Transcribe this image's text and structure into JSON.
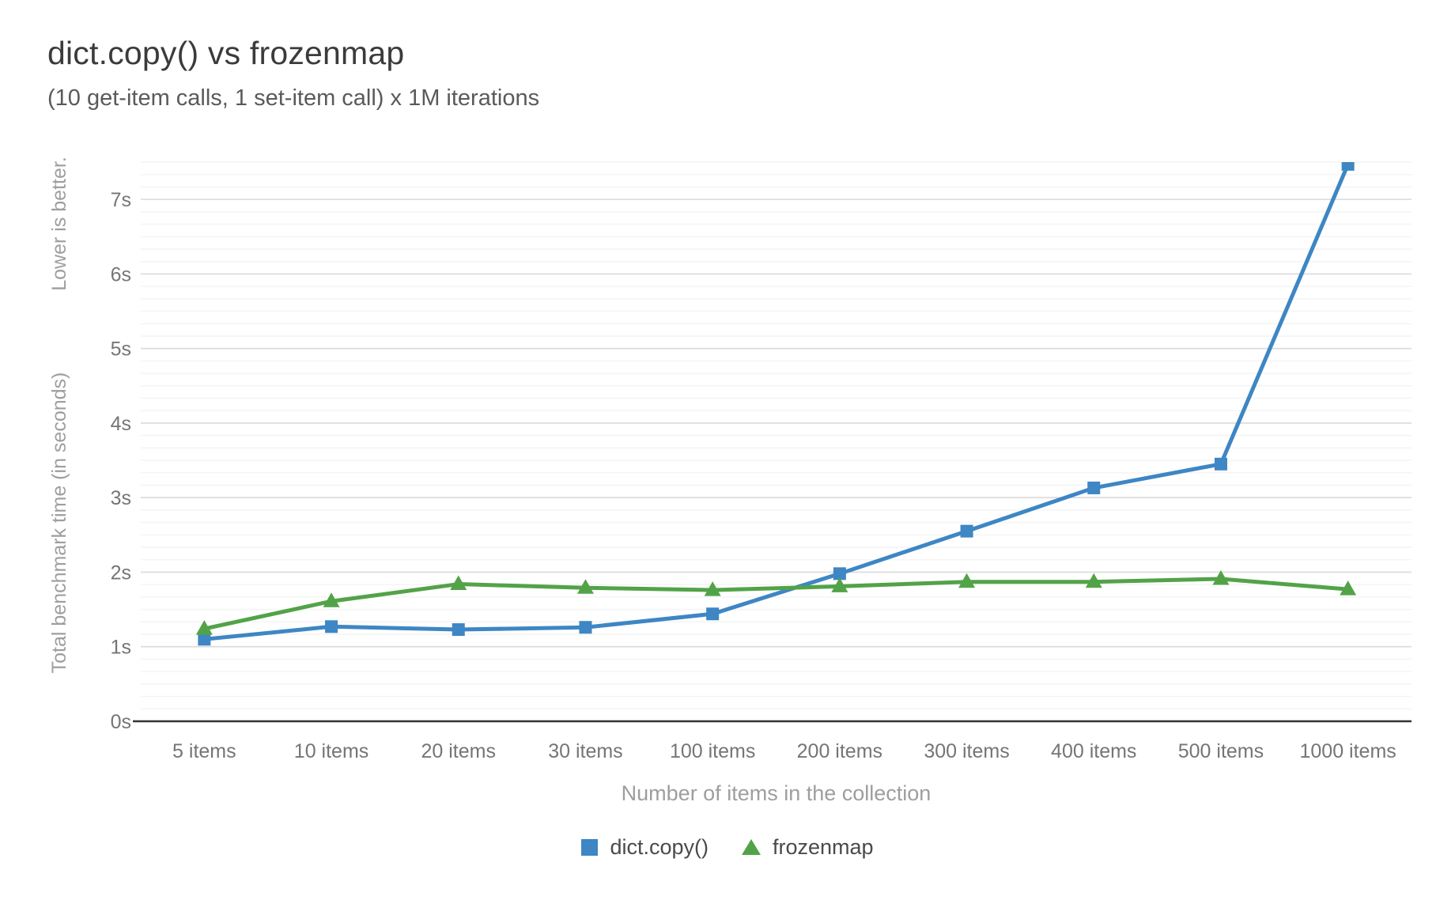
{
  "chart_data": {
    "type": "line",
    "title": "dict.copy() vs frozenmap",
    "subtitle": "(10 get-item calls, 1 set-item call) x 1M iterations",
    "xlabel": "Number of items in the collection",
    "ylabel": "Total benchmark time (in seconds)",
    "ylabel_note": "Lower is better.",
    "categories": [
      "5 items",
      "10 items",
      "20 items",
      "30 items",
      "100 items",
      "200 items",
      "300 items",
      "400 items",
      "500 items",
      "1000 items"
    ],
    "series": [
      {
        "name": "dict.copy()",
        "marker": "square",
        "color": "#3e86c4",
        "values": [
          1.1,
          1.27,
          1.23,
          1.26,
          1.44,
          1.98,
          2.55,
          3.13,
          3.45,
          7.47
        ]
      },
      {
        "name": "frozenmap",
        "marker": "triangle",
        "color": "#52a348",
        "values": [
          1.24,
          1.61,
          1.84,
          1.79,
          1.76,
          1.81,
          1.87,
          1.87,
          1.91,
          1.77
        ]
      }
    ],
    "yticks": [
      {
        "value": 0,
        "label": "0s"
      },
      {
        "value": 1,
        "label": "1s"
      },
      {
        "value": 2,
        "label": "2s"
      },
      {
        "value": 3,
        "label": "3s"
      },
      {
        "value": 4,
        "label": "4s"
      },
      {
        "value": 5,
        "label": "5s"
      },
      {
        "value": 6,
        "label": "6s"
      },
      {
        "value": 7,
        "label": "7s"
      }
    ],
    "ylim": [
      0,
      7.5
    ],
    "grid": {
      "major": true,
      "minor": true,
      "minor_per_major": 6
    },
    "legend_position": "bottom"
  }
}
